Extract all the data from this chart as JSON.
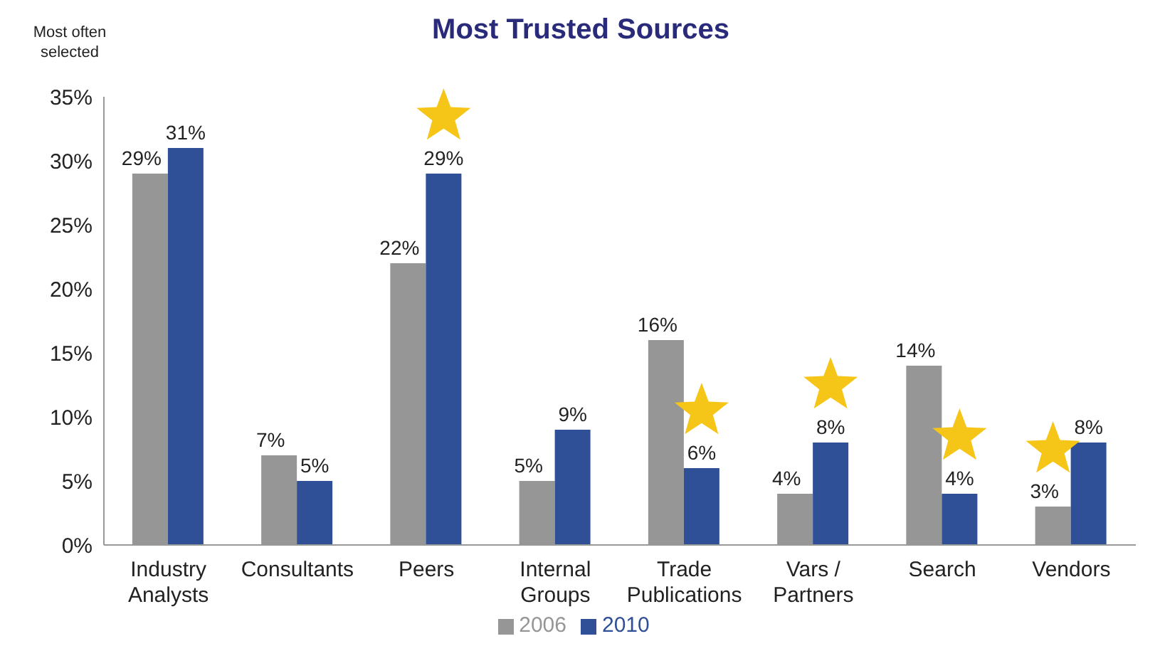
{
  "chart_data": {
    "type": "bar",
    "title": "Most Trusted Sources",
    "ylabel": "Most often selected",
    "categories": [
      "Industry Analysts",
      "Consultants",
      "Peers",
      "Internal Groups",
      "Trade Publications",
      "Vars / Partners",
      "Search",
      "Vendors"
    ],
    "series": [
      {
        "name": "2006",
        "color": "#969696",
        "values": [
          29,
          7,
          22,
          5,
          16,
          4,
          14,
          3
        ],
        "value_labels": [
          "29%",
          "7%",
          "22%",
          "5%",
          "16%",
          "4%",
          "14%",
          "3%"
        ]
      },
      {
        "name": "2010",
        "color": "#2f4f96",
        "values": [
          31,
          5,
          29,
          9,
          6,
          8,
          4,
          8
        ],
        "value_labels": [
          "31%",
          "5%",
          "29%",
          "9%",
          "6%",
          "8%",
          "4%",
          "8%"
        ]
      }
    ],
    "ylim": [
      0,
      35
    ],
    "yticks": [
      {
        "value": 0,
        "label": "0%"
      },
      {
        "value": 5,
        "label": "5%"
      },
      {
        "value": 10,
        "label": "10%"
      },
      {
        "value": 15,
        "label": "15%"
      },
      {
        "value": 20,
        "label": "20%"
      },
      {
        "value": 25,
        "label": "25%"
      },
      {
        "value": 30,
        "label": "30%"
      },
      {
        "value": 35,
        "label": "35%"
      }
    ],
    "legend": "bottom",
    "grid": false
  }
}
